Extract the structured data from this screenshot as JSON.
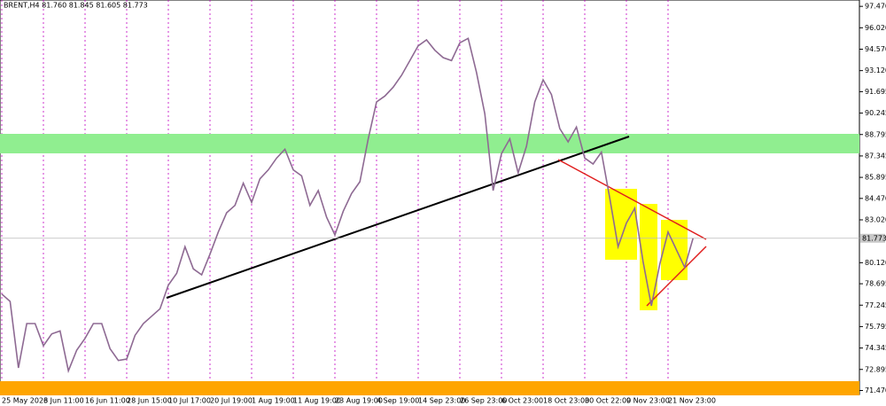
{
  "chart_data": {
    "type": "line",
    "title": "BRENT,H4 81.760 81.845 81.605 81.773",
    "categories": [
      "25 May 2023",
      null,
      null,
      null,
      null,
      "6 Jun 11:00",
      null,
      null,
      null,
      null,
      "16 Jun 11:00",
      null,
      null,
      null,
      null,
      "28 Jun 15:00",
      null,
      null,
      null,
      null,
      "10 Jul 17:00",
      null,
      null,
      null,
      null,
      "20 Jul 19:00",
      null,
      null,
      null,
      null,
      "1 Aug 19:00",
      null,
      null,
      null,
      null,
      "11 Aug 19:00",
      null,
      null,
      null,
      null,
      "23 Aug 19:00",
      null,
      null,
      null,
      null,
      "4 Sep 19:00",
      null,
      null,
      null,
      null,
      "14 Sep 23:00",
      null,
      null,
      null,
      null,
      "26 Sep 23:00",
      null,
      null,
      null,
      null,
      "6 Oct 23:00",
      null,
      null,
      null,
      null,
      "18 Oct 23:00",
      null,
      null,
      null,
      null,
      "30 Oct 22:00",
      null,
      null,
      null,
      null,
      "9 Nov 23:00",
      null,
      null,
      null,
      null,
      "21 Nov 23:00",
      null,
      null,
      null
    ],
    "values": [
      78,
      77.5,
      73,
      76,
      76,
      74.5,
      75.3,
      75.5,
      72.8,
      74.2,
      75,
      76,
      76,
      74.3,
      73.5,
      73.6,
      75.2,
      76,
      76.5,
      77,
      78.6,
      79.4,
      81.2,
      79.7,
      79.3,
      80.7,
      82.2,
      83.5,
      84,
      85.5,
      84.2,
      85.8,
      86.4,
      87.2,
      87.8,
      86.4,
      86,
      84,
      85,
      83.2,
      82,
      83.6,
      84.8,
      85.6,
      88.5,
      91,
      91.4,
      92,
      92.8,
      93.8,
      94.8,
      95.2,
      94.5,
      94,
      93.8,
      95,
      95.3,
      93,
      90.2,
      85,
      87.5,
      88.5,
      86.2,
      88,
      91,
      92.5,
      91.5,
      89.2,
      88.3,
      89.3,
      87.2,
      86.8,
      87.6,
      84.5,
      81.2,
      82.8,
      83.8,
      80.2,
      77.2,
      80,
      82.2,
      81,
      79.8,
      81.773
    ],
    "color": "#8e6a93",
    "ylim": [
      71.2,
      97.9
    ],
    "yticks": [
      {
        "value": 97.47,
        "label": "97.470"
      },
      {
        "value": 96.02,
        "label": "96.020"
      },
      {
        "value": 94.57,
        "label": "94.570"
      },
      {
        "value": 93.12,
        "label": "93.120"
      },
      {
        "value": 91.695,
        "label": "91.695"
      },
      {
        "value": 90.245,
        "label": "90.245"
      },
      {
        "value": 88.795,
        "label": "88.795"
      },
      {
        "value": 87.345,
        "label": "87.345"
      },
      {
        "value": 85.895,
        "label": "85.895"
      },
      {
        "value": 84.47,
        "label": "84.470"
      },
      {
        "value": 83.02,
        "label": "83.020"
      },
      {
        "value": 80.12,
        "label": "80.120"
      },
      {
        "value": 78.695,
        "label": "78.695"
      },
      {
        "value": 77.245,
        "label": "77.245"
      },
      {
        "value": 75.795,
        "label": "75.795"
      },
      {
        "value": 74.345,
        "label": "74.345"
      },
      {
        "value": 72.895,
        "label": "72.895"
      },
      {
        "value": 71.47,
        "label": "71.470"
      }
    ],
    "last_price": {
      "value": 81.773,
      "label": "81.773"
    }
  }
}
